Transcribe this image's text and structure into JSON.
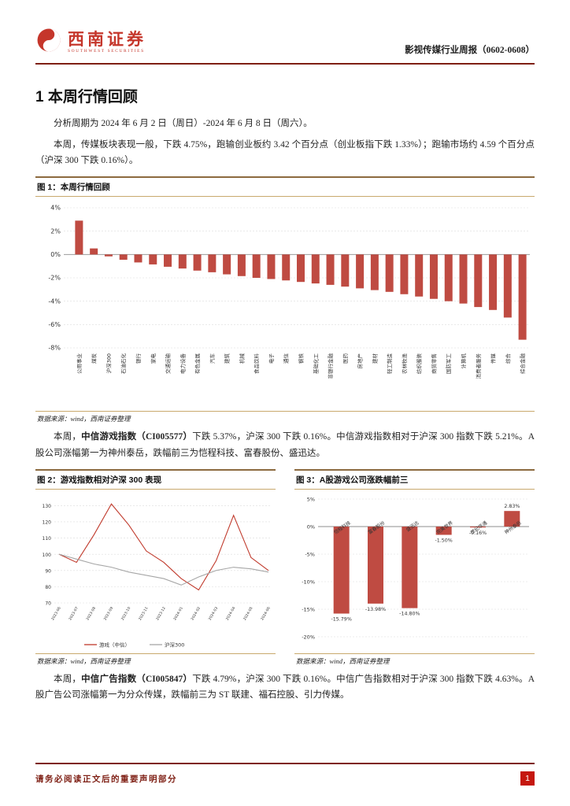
{
  "header": {
    "brand": "西南证券",
    "brand_sub": "SOUTHWEST SECURITIES",
    "report_title": "影视传媒行业周报（0602-0608）"
  },
  "section": {
    "heading": "1 本周行情回顾",
    "para_period": "分析周期为 2024 年 6 月 2 日（周日）-2024 年 6 月 8 日（周六）。",
    "para_market": [
      {
        "text": "本周，传媒板块表现一般，下跌 4.75%，跑输创业板约 3.42 个百分点（创业板指下跌 1.33%）；跑输市场约 4.59 个百分点（沪深 300 下跌 0.16%）。",
        "bold": false
      }
    ],
    "para_game": [
      {
        "text": "本周，",
        "bold": false
      },
      {
        "text": "中信游戏指数（CI005577）",
        "bold": true
      },
      {
        "text": "下跌 5.37%，沪深 300 下跌 0.16%。中信游戏指数相对于沪深 300 指数下跌 5.21%。A 股公司涨幅第一为神州泰岳，跌幅前三为恺程科技、富春股份、盛迅达。",
        "bold": false
      }
    ],
    "para_ad": [
      {
        "text": "本周，",
        "bold": false
      },
      {
        "text": "中信广告指数（CI005847）",
        "bold": true
      },
      {
        "text": "下跌 4.79%，沪深 300 下跌 0.16%。中信广告指数相对于沪深 300 指数下跌 4.63%。A股广告公司涨幅第一为分众传媒，跌幅前三为 ST 联建、福石控股、引力传媒。",
        "bold": false
      }
    ]
  },
  "figures": {
    "fig1": {
      "caption": "图 1：本周行情回顾",
      "source": "数据来源：wind，西南证券整理"
    },
    "fig2": {
      "caption": "图 2：游戏指数相对沪深 300 表现",
      "source": "数据来源：wind，西南证券整理"
    },
    "fig3": {
      "caption": "图 3：A股游戏公司涨跌幅前三",
      "source": "数据来源：wind，西南证券整理"
    }
  },
  "footer": {
    "disclaimer": "请务必阅读正文后的重要声明部分",
    "page": "1"
  },
  "colors": {
    "bar_red": "#bf4b42",
    "rule_maroon": "#7e1f14",
    "brand_red": "#c5362b",
    "page_badge_red": "#c5170e",
    "line_gray": "#a6a6a6"
  },
  "chart_data": [
    {
      "type": "bar",
      "title": "本周行情回顾",
      "categories": [
        "公用事业",
        "煤炭",
        "沪深300",
        "石油石化",
        "银行",
        "家电",
        "交通运输",
        "电力设备",
        "有色金属",
        "汽车",
        "建筑",
        "机械",
        "食品饮料",
        "电子",
        "通信",
        "钢铁",
        "基础化工",
        "非银行金融",
        "医药",
        "房地产",
        "建材",
        "轻工制造",
        "农林牧渔",
        "纺织服装",
        "商贸零售",
        "国防军工",
        "计算机",
        "消费者服务",
        "传媒",
        "综合",
        "综合金融"
      ],
      "values": [
        2.9,
        0.52,
        -0.16,
        -0.45,
        -0.68,
        -0.85,
        -1.05,
        -1.2,
        -1.38,
        -1.52,
        -1.7,
        -1.85,
        -2.0,
        -2.1,
        -2.22,
        -2.35,
        -2.48,
        -2.6,
        -2.75,
        -2.9,
        -3.05,
        -3.2,
        -3.4,
        -3.6,
        -3.8,
        -4.0,
        -4.2,
        -4.5,
        -4.75,
        -5.4,
        -7.3
      ],
      "ylim": [
        -8,
        4
      ],
      "yticks": [
        4,
        2,
        0,
        -2,
        -4,
        -6,
        -8
      ],
      "ytick_suffix": "%",
      "bar_color": "#bf4b42",
      "grid": true
    },
    {
      "type": "line",
      "title": "游戏指数相对沪深300表现",
      "x": [
        "2023-06",
        "2023-07",
        "2023-08",
        "2023-09",
        "2023-10",
        "2023-11",
        "2023-12",
        "2024-01",
        "2024-02",
        "2024-03",
        "2024-04",
        "2024-05",
        "2024-06"
      ],
      "series": [
        {
          "name": "游戏（中信）",
          "color": "#c0392b",
          "values": [
            100,
            95,
            112,
            131,
            118,
            102,
            95,
            85,
            78,
            96,
            124,
            98,
            90
          ]
        },
        {
          "name": "沪深300",
          "color": "#a6a6a6",
          "values": [
            100,
            97,
            94,
            92,
            89,
            87,
            85,
            81,
            86,
            90,
            92,
            91,
            89
          ]
        }
      ],
      "ylim": [
        70,
        135
      ],
      "yticks": [
        130,
        120,
        110,
        100,
        90,
        80,
        70
      ],
      "legend_position": "bottom",
      "grid": true
    },
    {
      "type": "bar",
      "title": "A股游戏公司涨跌幅前三",
      "categories": [
        "恺程科技",
        "富春股份",
        "盛迅达",
        "完美世界",
        "世纪华通",
        "神州泰岳"
      ],
      "values": [
        -15.79,
        -13.98,
        -14.8,
        -1.5,
        -0.16,
        2.83
      ],
      "ylim": [
        -20,
        5
      ],
      "yticks": [
        5,
        0,
        -5,
        -10,
        -15,
        -20
      ],
      "ytick_suffix": "%",
      "bar_color": "#bf4b42",
      "value_labels": true,
      "grid": true
    }
  ]
}
